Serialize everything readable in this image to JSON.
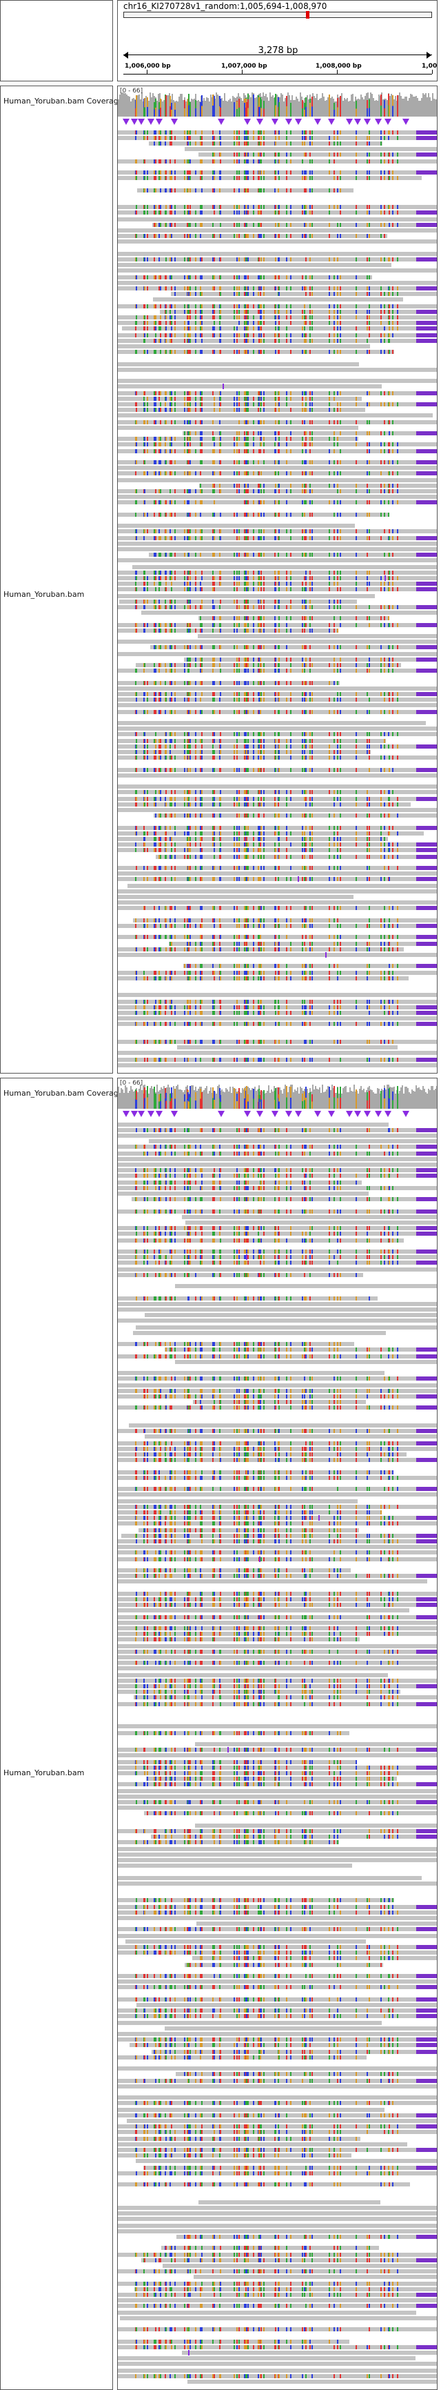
{
  "locus": "chr16_KI270728v1_random:1,005,694-1,008,970",
  "span": "3,278 bp",
  "ruler_ticks": [
    "1,006,000 bp",
    "1,007,000 bp",
    "1,008,000 bp",
    "1,00"
  ],
  "tracks": [
    {
      "coverage_name": "Human_Yoruban.bam Coverag",
      "coverage_range": "[0 - 66]",
      "alignment_name": "Human_Yoruban.bam"
    },
    {
      "coverage_name": "Human_Yoruban.bam Coverag",
      "coverage_range": "[0 - 66]",
      "alignment_name": "Human_Yoruban.bam"
    }
  ],
  "colors": {
    "read": "#c4c4c4",
    "mismatch_a": "#2fa83a",
    "mismatch_c": "#2c3edd",
    "mismatch_g": "#d99a2b",
    "mismatch_t": "#e23232",
    "insertion": "#8a2be2",
    "clip_badge": "#7a30c8"
  }
}
